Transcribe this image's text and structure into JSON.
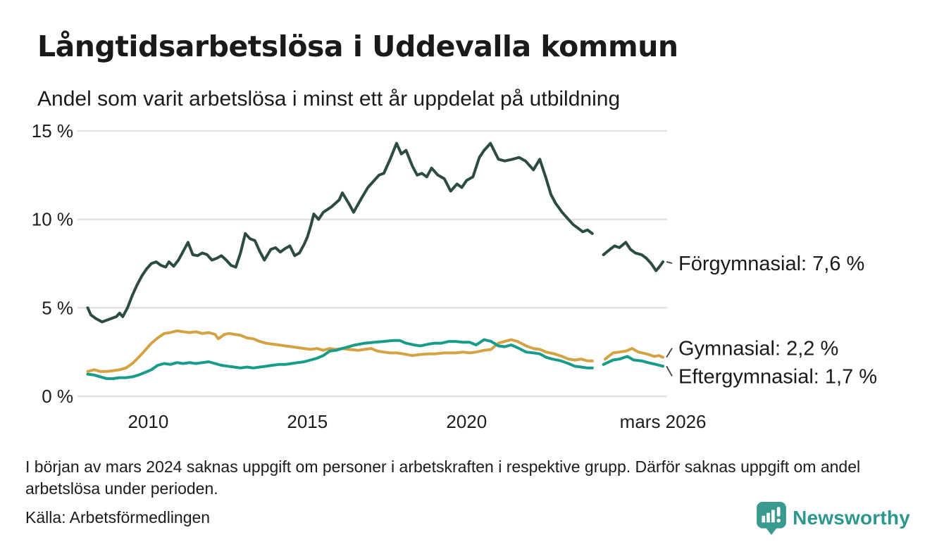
{
  "header": {
    "title": "Långtidsarbetslösa i Uddevalla kommun",
    "subtitle": "Andel som varit arbetslösa i minst ett år uppdelat på utbildning"
  },
  "chart_data": {
    "type": "line",
    "title": "Långtidsarbetslösa i Uddevalla kommun",
    "subtitle": "Andel som varit arbetslösa i minst ett år uppdelat på utbildning",
    "x_axis": {
      "range": [
        2008.0,
        2026.3
      ],
      "ticks": [
        2010,
        2015,
        2020,
        2026.17
      ],
      "tick_labels": [
        "2010",
        "2015",
        "2020",
        "mars 2026"
      ]
    },
    "y_axis": {
      "range": [
        0,
        15
      ],
      "ticks": [
        0,
        5,
        10,
        15
      ],
      "tick_labels": [
        "0 %",
        "5 %",
        "10 %",
        "15 %"
      ],
      "grid": true,
      "grid_color": "#e2e2e2"
    },
    "data_gap": {
      "from": 2024.0,
      "to": 2024.25,
      "reason": "uppgift saknas"
    },
    "series": [
      {
        "name": "Förgymnasial",
        "end_label": "Förgymnasial: 7,6 %",
        "end_value": "7,6 %",
        "color": "#2b4b43",
        "points": [
          [
            2008.1,
            5.0
          ],
          [
            2008.2,
            4.6
          ],
          [
            2008.35,
            4.4
          ],
          [
            2008.55,
            4.2
          ],
          [
            2008.7,
            4.3
          ],
          [
            2008.85,
            4.4
          ],
          [
            2009.0,
            4.5
          ],
          [
            2009.1,
            4.7
          ],
          [
            2009.2,
            4.5
          ],
          [
            2009.35,
            5.0
          ],
          [
            2009.5,
            5.7
          ],
          [
            2009.65,
            6.3
          ],
          [
            2009.8,
            6.8
          ],
          [
            2009.95,
            7.2
          ],
          [
            2010.1,
            7.5
          ],
          [
            2010.25,
            7.6
          ],
          [
            2010.4,
            7.4
          ],
          [
            2010.55,
            7.3
          ],
          [
            2010.65,
            7.6
          ],
          [
            2010.8,
            7.35
          ],
          [
            2010.95,
            7.7
          ],
          [
            2011.1,
            8.2
          ],
          [
            2011.25,
            8.7
          ],
          [
            2011.4,
            8.0
          ],
          [
            2011.55,
            7.95
          ],
          [
            2011.7,
            8.1
          ],
          [
            2011.85,
            8.0
          ],
          [
            2012.0,
            7.7
          ],
          [
            2012.15,
            7.8
          ],
          [
            2012.3,
            7.95
          ],
          [
            2012.45,
            7.7
          ],
          [
            2012.6,
            7.4
          ],
          [
            2012.75,
            7.3
          ],
          [
            2012.9,
            8.1
          ],
          [
            2013.05,
            9.2
          ],
          [
            2013.2,
            8.9
          ],
          [
            2013.35,
            8.8
          ],
          [
            2013.5,
            8.2
          ],
          [
            2013.65,
            7.7
          ],
          [
            2013.85,
            8.3
          ],
          [
            2014.0,
            8.4
          ],
          [
            2014.15,
            8.15
          ],
          [
            2014.3,
            8.35
          ],
          [
            2014.45,
            8.5
          ],
          [
            2014.6,
            7.95
          ],
          [
            2014.75,
            8.1
          ],
          [
            2014.9,
            8.6
          ],
          [
            2015.0,
            9.0
          ],
          [
            2015.1,
            9.6
          ],
          [
            2015.2,
            10.3
          ],
          [
            2015.35,
            10.0
          ],
          [
            2015.5,
            10.4
          ],
          [
            2015.75,
            10.7
          ],
          [
            2016.0,
            11.1
          ],
          [
            2016.1,
            11.5
          ],
          [
            2016.3,
            10.9
          ],
          [
            2016.45,
            10.4
          ],
          [
            2016.7,
            11.2
          ],
          [
            2016.9,
            11.8
          ],
          [
            2017.1,
            12.2
          ],
          [
            2017.25,
            12.5
          ],
          [
            2017.4,
            12.6
          ],
          [
            2017.6,
            13.4
          ],
          [
            2017.8,
            14.3
          ],
          [
            2017.95,
            13.7
          ],
          [
            2018.1,
            13.9
          ],
          [
            2018.3,
            13.0
          ],
          [
            2018.45,
            12.5
          ],
          [
            2018.6,
            12.6
          ],
          [
            2018.75,
            12.4
          ],
          [
            2018.9,
            12.9
          ],
          [
            2019.1,
            12.5
          ],
          [
            2019.3,
            12.3
          ],
          [
            2019.5,
            11.6
          ],
          [
            2019.7,
            12.0
          ],
          [
            2019.85,
            11.8
          ],
          [
            2020.0,
            12.2
          ],
          [
            2020.2,
            12.4
          ],
          [
            2020.4,
            13.5
          ],
          [
            2020.55,
            13.9
          ],
          [
            2020.75,
            14.3
          ],
          [
            2021.0,
            13.4
          ],
          [
            2021.2,
            13.3
          ],
          [
            2021.45,
            13.4
          ],
          [
            2021.65,
            13.5
          ],
          [
            2021.85,
            13.3
          ],
          [
            2022.1,
            12.8
          ],
          [
            2022.3,
            13.4
          ],
          [
            2022.5,
            12.3
          ],
          [
            2022.65,
            11.4
          ],
          [
            2022.8,
            10.9
          ],
          [
            2023.0,
            10.4
          ],
          [
            2023.2,
            10.0
          ],
          [
            2023.35,
            9.7
          ],
          [
            2023.5,
            9.5
          ],
          [
            2023.65,
            9.3
          ],
          [
            2023.8,
            9.4
          ],
          [
            2023.95,
            9.2
          ],
          [
            2024.1,
            null
          ],
          [
            2024.3,
            8.0
          ],
          [
            2024.5,
            8.3
          ],
          [
            2024.65,
            8.5
          ],
          [
            2024.8,
            8.4
          ],
          [
            2025.0,
            8.7
          ],
          [
            2025.15,
            8.3
          ],
          [
            2025.3,
            8.1
          ],
          [
            2025.5,
            8.0
          ],
          [
            2025.65,
            7.8
          ],
          [
            2025.8,
            7.5
          ],
          [
            2025.95,
            7.1
          ],
          [
            2026.05,
            7.3
          ],
          [
            2026.17,
            7.6
          ]
        ]
      },
      {
        "name": "Gymnasial",
        "end_label": "Gymnasial: 2,2 %",
        "end_value": "2,2 %",
        "color": "#d3a343",
        "points": [
          [
            2008.1,
            1.4
          ],
          [
            2008.3,
            1.5
          ],
          [
            2008.5,
            1.4
          ],
          [
            2008.7,
            1.4
          ],
          [
            2008.9,
            1.45
          ],
          [
            2009.1,
            1.5
          ],
          [
            2009.3,
            1.6
          ],
          [
            2009.5,
            1.85
          ],
          [
            2009.7,
            2.2
          ],
          [
            2009.9,
            2.6
          ],
          [
            2010.1,
            3.0
          ],
          [
            2010.3,
            3.3
          ],
          [
            2010.5,
            3.55
          ],
          [
            2010.7,
            3.6
          ],
          [
            2010.9,
            3.7
          ],
          [
            2011.1,
            3.65
          ],
          [
            2011.3,
            3.6
          ],
          [
            2011.5,
            3.65
          ],
          [
            2011.7,
            3.55
          ],
          [
            2011.9,
            3.6
          ],
          [
            2012.1,
            3.5
          ],
          [
            2012.2,
            3.25
          ],
          [
            2012.4,
            3.5
          ],
          [
            2012.55,
            3.55
          ],
          [
            2012.7,
            3.5
          ],
          [
            2012.9,
            3.45
          ],
          [
            2013.1,
            3.3
          ],
          [
            2013.3,
            3.25
          ],
          [
            2013.5,
            3.1
          ],
          [
            2013.7,
            3.0
          ],
          [
            2013.9,
            2.95
          ],
          [
            2014.1,
            2.9
          ],
          [
            2014.3,
            2.85
          ],
          [
            2014.5,
            2.8
          ],
          [
            2014.7,
            2.75
          ],
          [
            2014.9,
            2.7
          ],
          [
            2015.1,
            2.65
          ],
          [
            2015.3,
            2.7
          ],
          [
            2015.5,
            2.6
          ],
          [
            2015.7,
            2.7
          ],
          [
            2015.9,
            2.65
          ],
          [
            2016.1,
            2.7
          ],
          [
            2016.3,
            2.65
          ],
          [
            2016.6,
            2.6
          ],
          [
            2016.8,
            2.65
          ],
          [
            2017.0,
            2.7
          ],
          [
            2017.2,
            2.55
          ],
          [
            2017.4,
            2.5
          ],
          [
            2017.6,
            2.45
          ],
          [
            2017.8,
            2.45
          ],
          [
            2018.0,
            2.4
          ],
          [
            2018.3,
            2.3
          ],
          [
            2018.5,
            2.35
          ],
          [
            2018.8,
            2.4
          ],
          [
            2019.0,
            2.4
          ],
          [
            2019.3,
            2.45
          ],
          [
            2019.65,
            2.45
          ],
          [
            2019.9,
            2.5
          ],
          [
            2020.1,
            2.45
          ],
          [
            2020.3,
            2.5
          ],
          [
            2020.55,
            2.6
          ],
          [
            2020.77,
            2.65
          ],
          [
            2021.0,
            3.0
          ],
          [
            2021.2,
            3.1
          ],
          [
            2021.4,
            3.2
          ],
          [
            2021.6,
            3.1
          ],
          [
            2021.87,
            2.85
          ],
          [
            2022.1,
            2.7
          ],
          [
            2022.3,
            2.65
          ],
          [
            2022.5,
            2.5
          ],
          [
            2022.75,
            2.4
          ],
          [
            2023.0,
            2.25
          ],
          [
            2023.2,
            2.1
          ],
          [
            2023.4,
            2.05
          ],
          [
            2023.6,
            2.1
          ],
          [
            2023.8,
            2.0
          ],
          [
            2023.95,
            2.0
          ],
          [
            2024.1,
            null
          ],
          [
            2024.35,
            2.1
          ],
          [
            2024.6,
            2.45
          ],
          [
            2024.8,
            2.5
          ],
          [
            2025.0,
            2.55
          ],
          [
            2025.2,
            2.7
          ],
          [
            2025.4,
            2.5
          ],
          [
            2025.65,
            2.4
          ],
          [
            2025.9,
            2.25
          ],
          [
            2026.05,
            2.3
          ],
          [
            2026.17,
            2.2
          ]
        ]
      },
      {
        "name": "Eftergymnasial",
        "end_label": "Eftergymnasial: 1,7 %",
        "end_value": "1,7 %",
        "color": "#169c89",
        "points": [
          [
            2008.1,
            1.25
          ],
          [
            2008.3,
            1.2
          ],
          [
            2008.5,
            1.1
          ],
          [
            2008.7,
            1.0
          ],
          [
            2008.9,
            1.0
          ],
          [
            2009.1,
            1.05
          ],
          [
            2009.3,
            1.05
          ],
          [
            2009.5,
            1.1
          ],
          [
            2009.7,
            1.2
          ],
          [
            2009.9,
            1.35
          ],
          [
            2010.1,
            1.5
          ],
          [
            2010.3,
            1.75
          ],
          [
            2010.5,
            1.85
          ],
          [
            2010.7,
            1.8
          ],
          [
            2010.9,
            1.9
          ],
          [
            2011.1,
            1.85
          ],
          [
            2011.3,
            1.9
          ],
          [
            2011.5,
            1.85
          ],
          [
            2011.7,
            1.9
          ],
          [
            2011.9,
            1.95
          ],
          [
            2012.1,
            1.85
          ],
          [
            2012.3,
            1.75
          ],
          [
            2012.5,
            1.7
          ],
          [
            2012.7,
            1.65
          ],
          [
            2012.9,
            1.6
          ],
          [
            2013.1,
            1.65
          ],
          [
            2013.3,
            1.6
          ],
          [
            2013.5,
            1.65
          ],
          [
            2013.7,
            1.7
          ],
          [
            2013.9,
            1.75
          ],
          [
            2014.1,
            1.8
          ],
          [
            2014.3,
            1.8
          ],
          [
            2014.5,
            1.85
          ],
          [
            2014.7,
            1.9
          ],
          [
            2014.9,
            1.95
          ],
          [
            2015.1,
            2.05
          ],
          [
            2015.3,
            2.15
          ],
          [
            2015.5,
            2.3
          ],
          [
            2015.7,
            2.55
          ],
          [
            2015.9,
            2.6
          ],
          [
            2016.1,
            2.7
          ],
          [
            2016.3,
            2.8
          ],
          [
            2016.5,
            2.9
          ],
          [
            2016.8,
            3.0
          ],
          [
            2017.1,
            3.05
          ],
          [
            2017.4,
            3.1
          ],
          [
            2017.7,
            3.15
          ],
          [
            2017.9,
            3.15
          ],
          [
            2018.1,
            3.0
          ],
          [
            2018.35,
            2.9
          ],
          [
            2018.55,
            2.85
          ],
          [
            2018.8,
            2.95
          ],
          [
            2019.0,
            3.0
          ],
          [
            2019.2,
            3.0
          ],
          [
            2019.45,
            3.1
          ],
          [
            2019.65,
            3.1
          ],
          [
            2019.9,
            3.05
          ],
          [
            2020.1,
            3.05
          ],
          [
            2020.3,
            2.9
          ],
          [
            2020.55,
            3.2
          ],
          [
            2020.77,
            3.1
          ],
          [
            2021.0,
            2.85
          ],
          [
            2021.2,
            2.8
          ],
          [
            2021.4,
            2.9
          ],
          [
            2021.65,
            2.7
          ],
          [
            2021.87,
            2.5
          ],
          [
            2022.1,
            2.45
          ],
          [
            2022.3,
            2.4
          ],
          [
            2022.5,
            2.2
          ],
          [
            2022.7,
            2.1
          ],
          [
            2022.97,
            2.0
          ],
          [
            2023.2,
            1.85
          ],
          [
            2023.4,
            1.7
          ],
          [
            2023.6,
            1.65
          ],
          [
            2023.8,
            1.6
          ],
          [
            2023.95,
            1.6
          ],
          [
            2024.1,
            null
          ],
          [
            2024.3,
            1.8
          ],
          [
            2024.6,
            2.05
          ],
          [
            2024.8,
            2.1
          ],
          [
            2025.05,
            2.25
          ],
          [
            2025.25,
            2.05
          ],
          [
            2025.5,
            2.0
          ],
          [
            2025.7,
            1.9
          ],
          [
            2025.95,
            1.8
          ],
          [
            2026.17,
            1.7
          ]
        ]
      }
    ],
    "legend_position": "end-of-line labels (right)"
  },
  "footer": {
    "note": "I början av mars 2024 saknas uppgift om personer i arbetskraften i respektive grupp. Därför saknas uppgift om andel arbetslösa under perioden.",
    "source": "Källa: Arbetsförmedlingen"
  },
  "logo": {
    "text": "Newsworthy",
    "color": "#2d968d"
  }
}
